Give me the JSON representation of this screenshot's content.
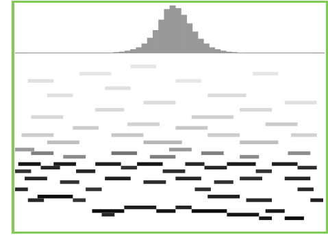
{
  "chart_data": [
    {
      "type": "histogram",
      "color": "#999999",
      "grid": false,
      "tick_labels": false,
      "bins": [
        0,
        1,
        2,
        3,
        4,
        5,
        6,
        7,
        8,
        9,
        10,
        11,
        12,
        13,
        14,
        15,
        16,
        17,
        18,
        19,
        20,
        21,
        22,
        23,
        24,
        25,
        26,
        27,
        28,
        29,
        30,
        31,
        32,
        33,
        34,
        35,
        36,
        37,
        38,
        39,
        40,
        41,
        42,
        43,
        44,
        45,
        46,
        47,
        48,
        49,
        50
      ],
      "counts": [
        0,
        0,
        0,
        0,
        0,
        0,
        0,
        0,
        0,
        0,
        0,
        0,
        0,
        0,
        1,
        2,
        3,
        5,
        8,
        12,
        20,
        32,
        48,
        70,
        92,
        100,
        94,
        80,
        62,
        45,
        30,
        20,
        12,
        8,
        5,
        3,
        2,
        1,
        0,
        0,
        0,
        0,
        0,
        0,
        0,
        0,
        0,
        0,
        0,
        0
      ],
      "xlim": [
        0,
        50
      ],
      "ylim": [
        0,
        100
      ]
    },
    {
      "type": "heatmap",
      "grid": false,
      "tick_labels": false,
      "xlim": [
        0,
        96
      ],
      "ylim": [
        0,
        48
      ],
      "zlim": [
        0,
        100
      ],
      "cells": [
        {
          "x0": 1,
          "x1": 8,
          "y": 18,
          "value": 92
        },
        {
          "x0": 12,
          "x1": 19,
          "y": 18,
          "value": 90
        },
        {
          "x0": 25,
          "x1": 33,
          "y": 18,
          "value": 88
        },
        {
          "x0": 38,
          "x1": 46,
          "y": 18,
          "value": 92
        },
        {
          "x0": 53,
          "x1": 59,
          "y": 18,
          "value": 85
        },
        {
          "x0": 66,
          "x1": 75,
          "y": 18,
          "value": 90
        },
        {
          "x0": 80,
          "x1": 88,
          "y": 18,
          "value": 88
        },
        {
          "x0": 8,
          "x1": 14,
          "y": 17,
          "value": 85
        },
        {
          "x0": 33,
          "x1": 38,
          "y": 17,
          "value": 80
        },
        {
          "x0": 59,
          "x1": 66,
          "y": 17,
          "value": 85
        },
        {
          "x0": 88,
          "x1": 94,
          "y": 17,
          "value": 82
        },
        {
          "x0": 0,
          "x1": 5,
          "y": 16,
          "value": 80
        },
        {
          "x0": 19,
          "x1": 25,
          "y": 16,
          "value": 85
        },
        {
          "x0": 46,
          "x1": 53,
          "y": 16,
          "value": 82
        },
        {
          "x0": 75,
          "x1": 80,
          "y": 16,
          "value": 80
        },
        {
          "x0": 3,
          "x1": 10,
          "y": 14,
          "value": 85
        },
        {
          "x0": 28,
          "x1": 36,
          "y": 14,
          "value": 88
        },
        {
          "x0": 50,
          "x1": 58,
          "y": 14,
          "value": 85
        },
        {
          "x0": 70,
          "x1": 77,
          "y": 14,
          "value": 82
        },
        {
          "x0": 84,
          "x1": 92,
          "y": 14,
          "value": 85
        },
        {
          "x0": 14,
          "x1": 20,
          "y": 13,
          "value": 80
        },
        {
          "x0": 40,
          "x1": 47,
          "y": 13,
          "value": 82
        },
        {
          "x0": 62,
          "x1": 68,
          "y": 13,
          "value": 80
        },
        {
          "x0": 0,
          "x1": 4,
          "y": 11,
          "value": 85
        },
        {
          "x0": 22,
          "x1": 27,
          "y": 11,
          "value": 80
        },
        {
          "x0": 56,
          "x1": 61,
          "y": 11,
          "value": 82
        },
        {
          "x0": 88,
          "x1": 93,
          "y": 11,
          "value": 85
        },
        {
          "x0": 7,
          "x1": 18,
          "y": 9,
          "value": 95
        },
        {
          "x0": 60,
          "x1": 70,
          "y": 9,
          "value": 88
        },
        {
          "x0": 4,
          "x1": 9,
          "y": 8,
          "value": 85
        },
        {
          "x0": 18,
          "x1": 22,
          "y": 8,
          "value": 80
        },
        {
          "x0": 72,
          "x1": 80,
          "y": 8,
          "value": 85
        },
        {
          "x0": 92,
          "x1": 96,
          "y": 8,
          "value": 88
        },
        {
          "x0": 34,
          "x1": 44,
          "y": 6,
          "value": 88
        },
        {
          "x0": 50,
          "x1": 55,
          "y": 6,
          "value": 85
        },
        {
          "x0": 24,
          "x1": 34,
          "y": 5,
          "value": 95
        },
        {
          "x0": 44,
          "x1": 50,
          "y": 5,
          "value": 92
        },
        {
          "x0": 55,
          "x1": 66,
          "y": 5,
          "value": 95
        },
        {
          "x0": 78,
          "x1": 84,
          "y": 5,
          "value": 90
        },
        {
          "x0": 27,
          "x1": 31,
          "y": 4,
          "value": 85
        },
        {
          "x0": 66,
          "x1": 76,
          "y": 4,
          "value": 92
        },
        {
          "x0": 76,
          "x1": 80,
          "y": 3,
          "value": 90
        },
        {
          "x0": 84,
          "x1": 90,
          "y": 3,
          "value": 95
        },
        {
          "x0": 5,
          "x1": 12,
          "y": 21,
          "value": 50
        },
        {
          "x0": 30,
          "x1": 38,
          "y": 21,
          "value": 55
        },
        {
          "x0": 58,
          "x1": 65,
          "y": 21,
          "value": 50
        },
        {
          "x0": 85,
          "x1": 92,
          "y": 21,
          "value": 45
        },
        {
          "x0": 15,
          "x1": 22,
          "y": 20,
          "value": 45
        },
        {
          "x0": 42,
          "x1": 50,
          "y": 20,
          "value": 50
        },
        {
          "x0": 70,
          "x1": 76,
          "y": 20,
          "value": 45
        },
        {
          "x0": 0,
          "x1": 6,
          "y": 22,
          "value": 40
        },
        {
          "x0": 48,
          "x1": 55,
          "y": 22,
          "value": 40
        },
        {
          "x0": 10,
          "x1": 20,
          "y": 24,
          "value": 25
        },
        {
          "x0": 40,
          "x1": 52,
          "y": 24,
          "value": 28
        },
        {
          "x0": 70,
          "x1": 82,
          "y": 24,
          "value": 25
        },
        {
          "x0": 2,
          "x1": 12,
          "y": 26,
          "value": 20
        },
        {
          "x0": 30,
          "x1": 40,
          "y": 26,
          "value": 22
        },
        {
          "x0": 60,
          "x1": 70,
          "y": 26,
          "value": 20
        },
        {
          "x0": 86,
          "x1": 94,
          "y": 26,
          "value": 18
        },
        {
          "x0": 18,
          "x1": 26,
          "y": 28,
          "value": 20
        },
        {
          "x0": 50,
          "x1": 60,
          "y": 28,
          "value": 22
        },
        {
          "x0": 35,
          "x1": 45,
          "y": 29,
          "value": 18
        },
        {
          "x0": 78,
          "x1": 88,
          "y": 29,
          "value": 20
        },
        {
          "x0": 5,
          "x1": 15,
          "y": 31,
          "value": 15
        },
        {
          "x0": 55,
          "x1": 68,
          "y": 31,
          "value": 18
        },
        {
          "x0": 25,
          "x1": 34,
          "y": 33,
          "value": 15
        },
        {
          "x0": 70,
          "x1": 80,
          "y": 33,
          "value": 15
        },
        {
          "x0": 40,
          "x1": 50,
          "y": 35,
          "value": 14
        },
        {
          "x0": 84,
          "x1": 94,
          "y": 35,
          "value": 12
        },
        {
          "x0": 10,
          "x1": 18,
          "y": 37,
          "value": 12
        },
        {
          "x0": 60,
          "x1": 72,
          "y": 37,
          "value": 14
        },
        {
          "x0": 28,
          "x1": 36,
          "y": 39,
          "value": 12
        },
        {
          "x0": 4,
          "x1": 12,
          "y": 41,
          "value": 12
        },
        {
          "x0": 50,
          "x1": 58,
          "y": 41,
          "value": 10
        },
        {
          "x0": 20,
          "x1": 30,
          "y": 43,
          "value": 10
        },
        {
          "x0": 74,
          "x1": 82,
          "y": 43,
          "value": 10
        },
        {
          "x0": 36,
          "x1": 44,
          "y": 45,
          "value": 10
        }
      ]
    }
  ]
}
